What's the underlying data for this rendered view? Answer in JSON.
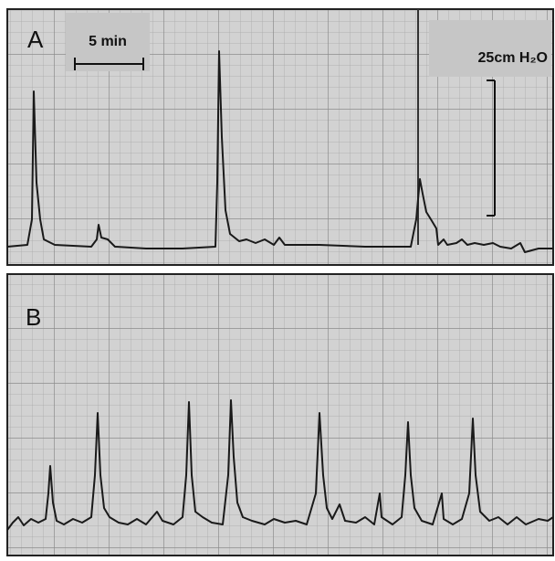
{
  "panel_a": {
    "label": "A",
    "time_scale": "5 min",
    "pressure_scale": "25cm H₂O"
  },
  "panel_b": {
    "label": "B"
  }
}
